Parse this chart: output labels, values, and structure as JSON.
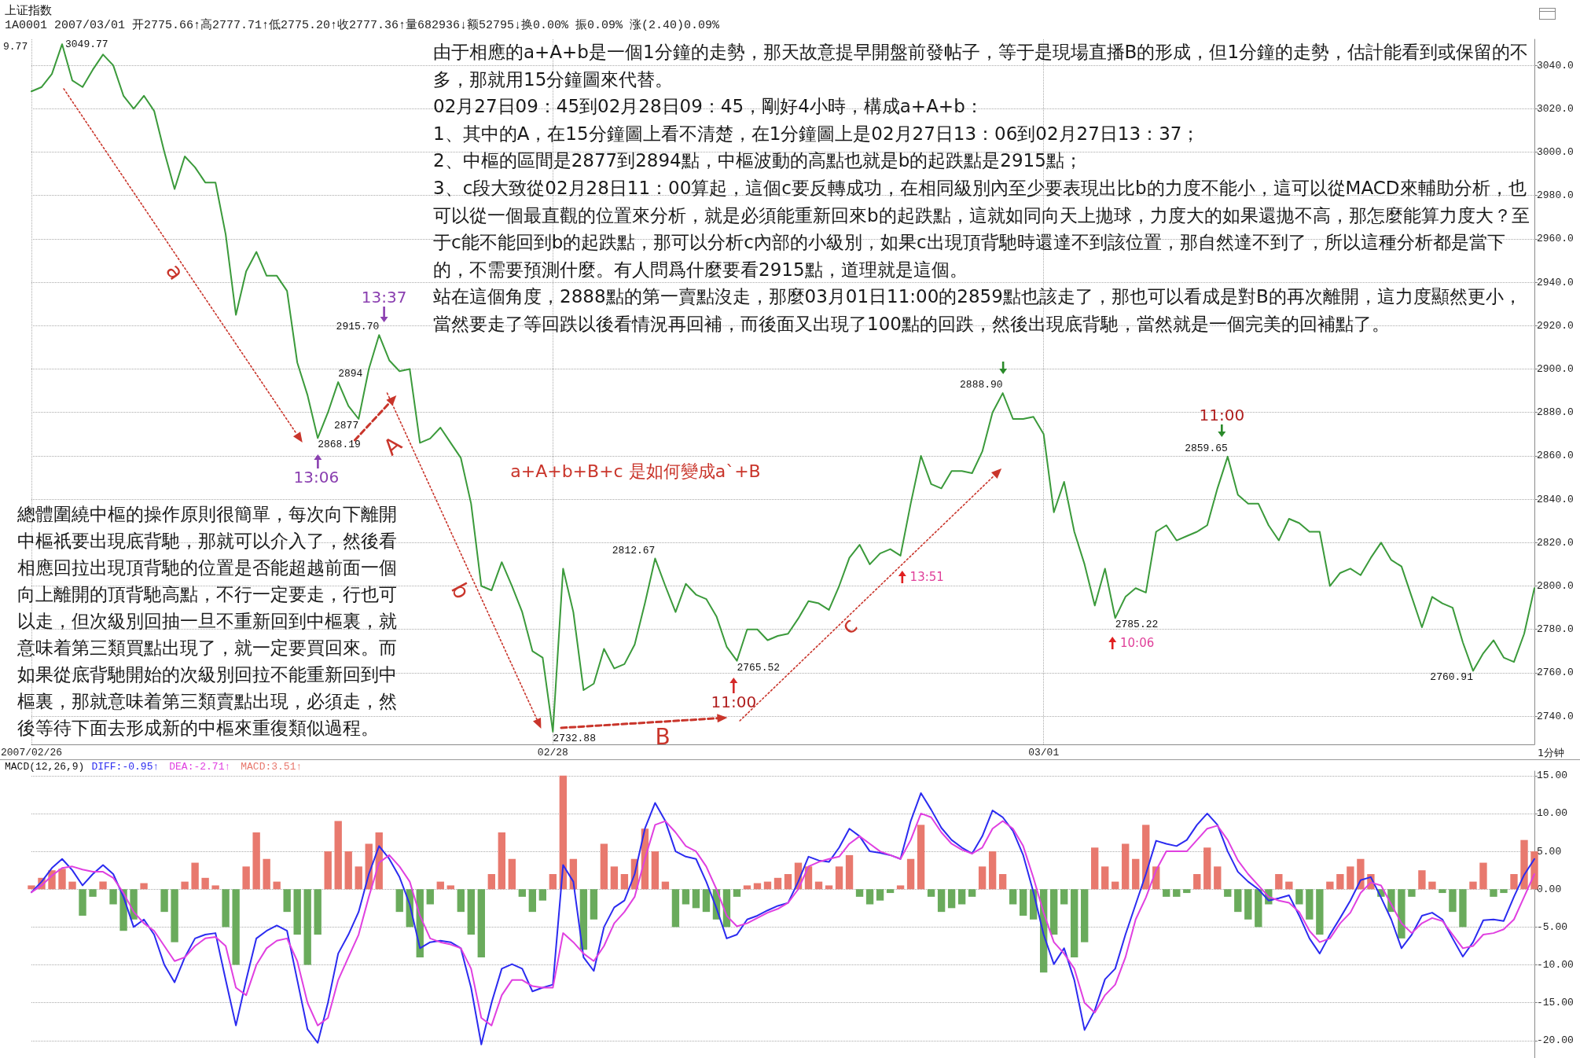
{
  "chart_data": [
    {
      "type": "line",
      "title": "上证指数",
      "subtitle": "1A0001 2007/03/01 开2775.66↑高2777.71↑低2775.20↑收2777.36↑量682936↓额52795↓换0.00% 振0.09% 涨(2.40)0.09%",
      "xlabel": "1分钟",
      "categories": [
        "2007/02/26",
        null,
        null,
        null,
        null,
        null,
        null,
        null,
        null,
        null,
        null,
        null,
        null,
        null,
        null,
        null,
        null,
        null,
        null,
        null,
        null,
        null,
        null,
        null,
        null,
        null,
        null,
        null,
        null,
        null,
        null,
        null,
        null,
        null,
        null,
        null,
        null,
        null,
        null,
        null,
        null,
        null,
        null,
        null,
        null,
        null,
        null,
        null,
        null,
        null,
        null,
        "02/28",
        null,
        null,
        null,
        null,
        null,
        null,
        null,
        null,
        null,
        null,
        null,
        null,
        null,
        null,
        null,
        null,
        null,
        null,
        null,
        null,
        null,
        null,
        null,
        null,
        null,
        null,
        null,
        null,
        null,
        null,
        null,
        null,
        null,
        null,
        null,
        null,
        null,
        null,
        null,
        null,
        null,
        null,
        null,
        null,
        null,
        null,
        null,
        "03/01",
        null,
        null,
        null,
        null,
        null,
        null,
        null,
        null,
        null,
        null,
        null,
        null,
        null,
        null,
        null,
        null,
        null,
        null,
        null,
        null,
        null,
        null,
        null,
        null,
        null,
        null,
        null,
        null,
        null,
        null,
        null,
        null,
        null,
        null,
        null,
        null,
        null,
        null,
        null,
        null,
        null,
        null,
        null,
        null,
        null,
        null,
        null,
        null
      ],
      "values": [
        3028,
        3030,
        3036,
        3049.77,
        3033,
        3030,
        3038,
        3045,
        3040,
        3026,
        3020,
        3026,
        3019,
        3000,
        2983,
        2998,
        2993,
        2986,
        2986,
        2962,
        2925,
        2945,
        2954,
        2943,
        2943,
        2936,
        2903,
        2888,
        2868.19,
        2880,
        2894,
        2883,
        2877,
        2900,
        2915.7,
        2904,
        2899,
        2900,
        2866,
        2868,
        2873,
        2866,
        2859,
        2838,
        2800,
        2798,
        2811,
        2800,
        2788,
        2770,
        2767,
        2732.88,
        2808,
        2788,
        2752,
        2755,
        2771,
        2762,
        2764,
        2773,
        2792,
        2812.67,
        2800,
        2788,
        2801,
        2796,
        2794,
        2786,
        2772,
        2765.52,
        2780,
        2780,
        2775,
        2777,
        2778,
        2785,
        2793,
        2792,
        2789,
        2800,
        2813,
        2819,
        2810,
        2815,
        2817,
        2814,
        2838,
        2860,
        2847,
        2845,
        2853,
        2853,
        2852,
        2862,
        2880,
        2888.9,
        2877,
        2877,
        2878,
        2870,
        2834,
        2848,
        2825,
        2810,
        2791,
        2808,
        2785.22,
        2795,
        2799,
        2797,
        2825,
        2828,
        2821,
        2823,
        2825,
        2828,
        2845,
        2859.65,
        2842,
        2838,
        2838,
        2828,
        2821,
        2831,
        2829,
        2825,
        2825,
        2800,
        2806,
        2808,
        2805,
        2813,
        2820,
        2812,
        2809,
        2795,
        2781,
        2795,
        2792,
        2790,
        2774,
        2760.91,
        2769,
        2775,
        2767,
        2765,
        2778,
        2799
      ],
      "color": "#3b9a3b",
      "value_labels": [
        null,
        null,
        null,
        "3049.77",
        null,
        null,
        null,
        null,
        null,
        null,
        null,
        null,
        null,
        null,
        null,
        null,
        null,
        null,
        null,
        null,
        null,
        null,
        null,
        null,
        null,
        null,
        null,
        null,
        "2868.19",
        null,
        "2894",
        null,
        "2877",
        null,
        "2915.70",
        null,
        null,
        null,
        null,
        null,
        null,
        null,
        null,
        null,
        null,
        null,
        null,
        null,
        null,
        null,
        null,
        "2732.88",
        null,
        null,
        null,
        null,
        null,
        null,
        null,
        null,
        null,
        "2812.67",
        null,
        null,
        null,
        null,
        null,
        null,
        null,
        "2765.52",
        null,
        null,
        null,
        null,
        null,
        null,
        null,
        null,
        null,
        null,
        null,
        null,
        null,
        null,
        null,
        null,
        null,
        null,
        null,
        null,
        null,
        null,
        null,
        null,
        null,
        "2888.90",
        null,
        null,
        null,
        null,
        null,
        null,
        null,
        null,
        null,
        null,
        "2785.22",
        null,
        null,
        null,
        null,
        null,
        null,
        null,
        null,
        null,
        null,
        "2859.65",
        null,
        null,
        null,
        null,
        null,
        null,
        null,
        null,
        null,
        null,
        null,
        null,
        null,
        null,
        null,
        null,
        null,
        null,
        null,
        null,
        null,
        null,
        null,
        "2760.91",
        null,
        null,
        null,
        null,
        null,
        null
      ],
      "ylim": [
        2727,
        3052
      ],
      "yticks": [
        {
          "value": 2740,
          "label": "2740.0"
        },
        {
          "value": 2760,
          "label": "2760.0"
        },
        {
          "value": 2780,
          "label": "2780.0"
        },
        {
          "value": 2800,
          "label": "2800.0"
        },
        {
          "value": 2820,
          "label": "2820.0"
        },
        {
          "value": 2840,
          "label": "2840.0"
        },
        {
          "value": 2860,
          "label": "2860.0"
        },
        {
          "value": 2880,
          "label": "2880.0"
        },
        {
          "value": 2900,
          "label": "2900.0"
        },
        {
          "value": 2920,
          "label": "2920.0"
        },
        {
          "value": 2940,
          "label": "2940.0"
        },
        {
          "value": 2960,
          "label": "2960.0"
        },
        {
          "value": 2980,
          "label": "2980.0"
        },
        {
          "value": 3000,
          "label": "3000.0"
        },
        {
          "value": 3020,
          "label": "3020.0"
        },
        {
          "value": 3040,
          "label": "3040.0"
        }
      ],
      "grid": true,
      "annotations": [
        "由于相應的a+A+b是一個1分鐘的走勢，那天故意提早開盤前發帖子，等于是現場直播B的形成，但1分鐘的走勢，估計能看到或保留的不多，那就用15分鐘圖來代替。",
        "02月27日09：45到02月28日09：45，剛好4小時，構成a+A+b：",
        "1、其中的A，在15分鐘圖上看不清楚，在1分鐘圖上是02月27日13：06到02月27日13：37；",
        "2、中樞的區間是2877到2894點，中樞波動的高點也就是b的起跌點是2915點；",
        "3、c段大致從02月28日11：00算起，這個c要反轉成功，在相同級別內至少要表現出比b的力度不能小，這可以從MACD來輔助分析，也可以從一個最直觀的位置來分析，就是必須能重新回來b的起跌點，這就如同向天上拋球，力度大的如果還拋不高，那怎麼能算力度大？至于c能不能回到b的起跌點，那可以分析c內部的小級別，如果c出現頂背馳時還達不到該位置，那自然達不到了，所以這種分析都是當下的，不需要預測什麼。有人問爲什麼要看2915點，道理就是這個。",
        "站在這個角度，2888點的第一賣點沒走，那麼03月01日11:00的2859點也該走了，那也可以看成是對B的再次離開，這力度顯然更小，當然要走了等回跌以後看情況再回補，而後面又出現了100點的回跌，然後出現底背馳，當然就是一個完美的回補點了。",
        "總體圍繞中樞的操作原則很簡單，每次向下離開中樞祇要出現底背馳，那就可以介入了，然後看相應回拉出現頂背馳的位置是否能超越前面一個向上離開的頂背馳高點，不行一定要走，行也可以走，但次級別回抽一旦不重新回到中樞裏，就意味着第三類買點出現了，就一定要買回來。而如果從底背馳開始的次級別回拉不能重新回到中樞裏，那就意味着第三類賣點出現，必須走，然後等待下面去形成新的中樞來重復類似過程。",
        "a+A+b+B+c 是如何變成a`+B",
        "a",
        "A",
        "b",
        "B",
        "c",
        "13:06",
        "13:37",
        "11:00",
        "13:51",
        "11:00",
        "10:06",
        "9.77"
      ]
    },
    {
      "type": "line",
      "title": "MACD(12,26,9)",
      "categories": [
        null,
        null,
        null,
        null,
        null,
        null,
        null,
        null,
        null,
        null,
        null,
        null,
        null,
        null,
        null,
        null,
        null,
        null,
        null,
        null,
        null,
        null,
        null,
        null,
        null,
        null,
        null,
        null,
        null,
        null,
        null,
        null,
        null,
        null,
        null,
        null,
        null,
        null,
        null,
        null,
        null,
        null,
        null,
        null,
        null,
        null,
        null,
        null,
        null,
        null,
        null,
        null,
        null,
        null,
        null,
        null,
        null,
        null,
        null,
        null,
        null,
        null,
        null,
        null,
        null,
        null,
        null,
        null,
        null,
        null,
        null,
        null,
        null,
        null,
        null,
        null,
        null,
        null,
        null,
        null,
        null,
        null,
        null,
        null,
        null,
        null,
        null,
        null,
        null,
        null,
        null,
        null,
        null,
        null,
        null,
        null,
        null,
        null,
        null,
        null,
        null,
        null,
        null,
        null,
        null,
        null,
        null,
        null,
        null,
        null,
        null,
        null,
        null,
        null,
        null,
        null,
        null,
        null,
        null,
        null,
        null,
        null,
        null,
        null,
        null,
        null,
        null,
        null,
        null,
        null,
        null,
        null,
        null,
        null,
        null,
        null,
        null,
        null,
        null,
        null,
        null,
        null,
        null,
        null,
        null,
        null,
        null,
        null
      ],
      "series": [
        {
          "name": "DIFF:-0.95↑",
          "type": "line",
          "color": "#2b2bf0",
          "values": [
            -0.4,
            1,
            2.8,
            4,
            2.5,
            0.5,
            2,
            3.2,
            2,
            -1,
            -5,
            -4,
            -6,
            -10,
            -12.3,
            -9,
            -6.5,
            -6,
            -5.8,
            -12,
            -18,
            -12,
            -6.5,
            -5.5,
            -4.8,
            -5.5,
            -12,
            -18.5,
            -20.3,
            -15,
            -8.5,
            -6,
            -3,
            2,
            5.7,
            4,
            1.6,
            -2,
            -7.8,
            -7,
            -6.8,
            -7,
            -7.8,
            -13,
            -20.5,
            -15,
            -10.5,
            -9.9,
            -10.5,
            -13.5,
            -13,
            -12.6,
            3.2,
            1,
            -9,
            -10.8,
            -5,
            -2.4,
            -1.5,
            2,
            8,
            11.4,
            9,
            5,
            4.3,
            4,
            1,
            -2.5,
            -6.5,
            -6,
            -4,
            -3.5,
            -2.8,
            -2.2,
            -1.8,
            1,
            4.3,
            3.8,
            3.6,
            5.5,
            8,
            7,
            5,
            4.8,
            4.5,
            4,
            9,
            12.7,
            10.5,
            8.1,
            6.5,
            5.5,
            4.7,
            7,
            10.4,
            9.5,
            7.7,
            4.5,
            -0.4,
            -6,
            -9.9,
            -7.8,
            -12,
            -18.6,
            -16,
            -11.9,
            -10.5,
            -6,
            -2,
            2,
            6.4,
            6,
            5.7,
            6.5,
            8.5,
            10,
            8.5,
            5,
            2.3,
            1,
            0,
            -1.5,
            -1.2,
            -0.8,
            -3.5,
            -6.5,
            -8.5,
            -6,
            -3.8,
            -1.5,
            1.2,
            1.6,
            -1.1,
            -4,
            -7.8,
            -6,
            -3.5,
            -3.1,
            -4,
            -6.5,
            -8.9,
            -7,
            -4.1,
            -4,
            -4.2,
            -1,
            1.9,
            4
          ]
        },
        {
          "name": "DEA:-2.71↑",
          "type": "line",
          "color": "#e040e0",
          "values": [
            -0.4,
            0.5,
            1.8,
            2.8,
            3,
            2.6,
            2.3,
            2.3,
            1.5,
            -0.5,
            -3,
            -4.5,
            -5.5,
            -7.5,
            -9.5,
            -9,
            -7.5,
            -6.5,
            -6.3,
            -7.5,
            -13,
            -14,
            -10,
            -7.8,
            -6.8,
            -6.5,
            -9.5,
            -15,
            -18,
            -17,
            -12,
            -9,
            -6,
            -1,
            3.5,
            4.5,
            3,
            1,
            -3.5,
            -6.5,
            -7,
            -7.3,
            -7.8,
            -10.5,
            -17,
            -18,
            -14,
            -12,
            -12,
            -12.8,
            -13,
            -13,
            -5.8,
            -7,
            -8.5,
            -9.5,
            -7.5,
            -4.5,
            -3,
            -1,
            4,
            8.5,
            9,
            7.5,
            5.7,
            5,
            3,
            0,
            -3.5,
            -4.9,
            -4.5,
            -3.8,
            -3.1,
            -2.6,
            -1.8,
            0,
            3,
            3.6,
            4,
            4.3,
            6,
            7,
            6,
            5,
            4.5,
            4,
            6.5,
            10,
            9.5,
            7.5,
            6,
            5.2,
            4.7,
            5.5,
            8,
            9,
            8,
            5.7,
            1.5,
            -3.1,
            -7,
            -8.5,
            -10.5,
            -15,
            -16.3,
            -14,
            -12.6,
            -9,
            -4,
            -1.1,
            2.5,
            5,
            5,
            5,
            6.5,
            8,
            8.4,
            6.5,
            3.8,
            2,
            0.5,
            -1,
            -1.5,
            -1.8,
            -3,
            -5.5,
            -7,
            -6.5,
            -4.5,
            -3.1,
            -0.5,
            0.9,
            0.5,
            -2,
            -4.5,
            -5.8,
            -4.5,
            -3.8,
            -4.2,
            -6,
            -7.8,
            -7.5,
            -6,
            -5.8,
            -5.3,
            -4,
            -1,
            2
          ]
        },
        {
          "name": "MACD:3.51↑",
          "type": "bar",
          "color": "#e8796e",
          "values": [
            0.5,
            1.5,
            2.5,
            2.7,
            1,
            -3.5,
            -1,
            1,
            -2,
            -5.5,
            -4,
            0.8,
            0,
            -3,
            -7,
            1,
            3.5,
            1.5,
            0.5,
            -5,
            -10,
            3,
            7.5,
            4,
            1,
            -3,
            -6,
            -10,
            -6,
            5,
            9,
            5,
            3,
            6,
            7.5,
            0,
            -3,
            -5,
            -9,
            -2,
            1,
            0.5,
            -3,
            -6,
            -9,
            2,
            7.5,
            4,
            -1,
            -3,
            -1.5,
            2,
            15,
            4,
            -8,
            -4,
            6,
            3,
            2,
            4,
            8,
            5,
            1,
            -5,
            -2,
            -2.5,
            -3,
            -4,
            -5,
            -1,
            0.5,
            0.8,
            1,
            1.5,
            2,
            3.5,
            3,
            1,
            0.5,
            3,
            4.5,
            -1,
            -2,
            -1.5,
            -0.5,
            0.5,
            4,
            8.5,
            -1,
            -3,
            -2.5,
            -2,
            -1,
            3,
            5,
            2,
            -2,
            -3.5,
            -4,
            -11,
            -6,
            -2,
            -9,
            -7,
            5.5,
            3,
            1,
            6,
            4,
            8.5,
            3,
            -1,
            -1,
            -0.5,
            2,
            5.5,
            3,
            -1,
            -3,
            -4,
            -5,
            -2,
            2,
            1,
            -2,
            -4,
            -6,
            1,
            2,
            3,
            4,
            2,
            -1,
            -3,
            -6.5,
            -1,
            2.5,
            1,
            -0.5,
            -3,
            -5,
            1,
            3.5,
            -1,
            -0.5,
            2,
            6.5,
            5
          ],
          "colors": [
            "#e8796e",
            "#e8796e",
            "#e8796e",
            "#e8796e",
            "#e8796e",
            "#6aab5c",
            "#6aab5c",
            "#e8796e",
            "#6aab5c",
            "#6aab5c",
            "#6aab5c",
            "#e8796e",
            "#e8796e",
            "#6aab5c",
            "#6aab5c",
            "#e8796e",
            "#e8796e",
            "#e8796e",
            "#e8796e",
            "#6aab5c",
            "#6aab5c",
            "#e8796e",
            "#e8796e",
            "#e8796e",
            "#e8796e",
            "#6aab5c",
            "#6aab5c",
            "#6aab5c",
            "#6aab5c",
            "#e8796e",
            "#e8796e",
            "#e8796e",
            "#e8796e",
            "#e8796e",
            "#e8796e",
            "#e8796e",
            "#6aab5c",
            "#6aab5c",
            "#6aab5c",
            "#6aab5c",
            "#e8796e",
            "#e8796e",
            "#6aab5c",
            "#6aab5c",
            "#6aab5c",
            "#e8796e",
            "#e8796e",
            "#e8796e",
            "#6aab5c",
            "#6aab5c",
            "#6aab5c",
            "#e8796e",
            "#e8796e",
            "#e8796e",
            "#6aab5c",
            "#6aab5c",
            "#e8796e",
            "#e8796e",
            "#e8796e",
            "#e8796e",
            "#e8796e",
            "#e8796e",
            "#e8796e",
            "#6aab5c",
            "#6aab5c",
            "#6aab5c",
            "#6aab5c",
            "#6aab5c",
            "#6aab5c",
            "#6aab5c",
            "#e8796e",
            "#e8796e",
            "#e8796e",
            "#e8796e",
            "#e8796e",
            "#e8796e",
            "#e8796e",
            "#e8796e",
            "#e8796e",
            "#e8796e",
            "#e8796e",
            "#6aab5c",
            "#6aab5c",
            "#6aab5c",
            "#6aab5c",
            "#e8796e",
            "#e8796e",
            "#e8796e",
            "#6aab5c",
            "#6aab5c",
            "#6aab5c",
            "#6aab5c",
            "#6aab5c",
            "#e8796e",
            "#e8796e",
            "#e8796e",
            "#6aab5c",
            "#6aab5c",
            "#6aab5c",
            "#6aab5c",
            "#6aab5c",
            "#6aab5c",
            "#6aab5c",
            "#6aab5c",
            "#e8796e",
            "#e8796e",
            "#e8796e",
            "#e8796e",
            "#e8796e",
            "#e8796e",
            "#e8796e",
            "#6aab5c",
            "#6aab5c",
            "#6aab5c",
            "#e8796e",
            "#e8796e",
            "#e8796e",
            "#6aab5c",
            "#6aab5c",
            "#6aab5c",
            "#6aab5c",
            "#6aab5c",
            "#e8796e",
            "#e8796e",
            "#6aab5c",
            "#6aab5c",
            "#6aab5c",
            "#e8796e",
            "#e8796e",
            "#e8796e",
            "#e8796e",
            "#e8796e",
            "#6aab5c",
            "#6aab5c",
            "#6aab5c",
            "#6aab5c",
            "#e8796e",
            "#e8796e",
            "#6aab5c",
            "#6aab5c",
            "#6aab5c",
            "#e8796e",
            "#e8796e",
            "#6aab5c",
            "#6aab5c",
            "#e8796e",
            "#e8796e",
            "#e8796e"
          ]
        }
      ],
      "ylim": [
        -22.4,
        15.6
      ],
      "yticks": [
        {
          "value": -20,
          "label": "-20.00"
        },
        {
          "value": -15,
          "label": "-15.00"
        },
        {
          "value": -10,
          "label": "-10.00"
        },
        {
          "value": -5,
          "label": "-5.00"
        },
        {
          "value": 0,
          "label": "0.00"
        },
        {
          "value": 5,
          "label": "5.00"
        },
        {
          "value": 10,
          "label": "10.00"
        },
        {
          "value": 15,
          "label": "15.00"
        }
      ],
      "grid": "y",
      "legend": "top left",
      "tick_labels": "y"
    }
  ]
}
